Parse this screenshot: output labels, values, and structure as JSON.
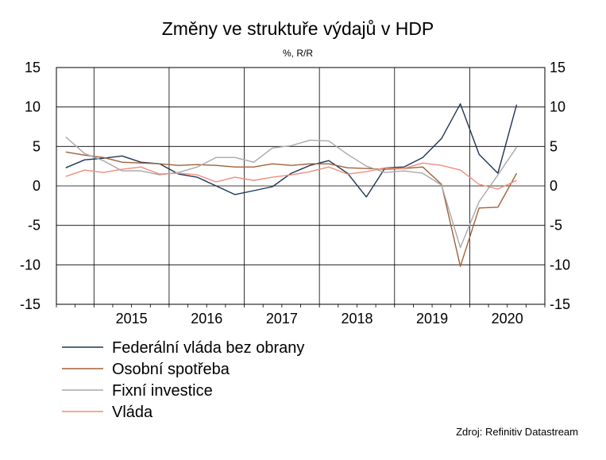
{
  "chart_data": {
    "type": "line",
    "title": "Změny ve struktuře výdajů v HDP",
    "subtitle": "%, R/R",
    "source": "Zdroj: Refinitiv Datastream",
    "ylim": [
      -15,
      15
    ],
    "y_ticks": [
      15,
      10,
      5,
      0,
      -5,
      -10,
      -15
    ],
    "y_axis_right": true,
    "x_labels": [
      "2015",
      "2016",
      "2017",
      "2018",
      "2019",
      "2020"
    ],
    "x_range": [
      2014.5,
      2021.0
    ],
    "grid": true,
    "legend_position": "bottom",
    "x": [
      2014.625,
      2014.875,
      2015.125,
      2015.375,
      2015.625,
      2015.875,
      2016.125,
      2016.375,
      2016.625,
      2016.875,
      2017.125,
      2017.375,
      2017.625,
      2017.875,
      2018.125,
      2018.375,
      2018.625,
      2018.875,
      2019.125,
      2019.375,
      2019.625,
      2019.875,
      2020.125,
      2020.375,
      2020.625,
      2020.875
    ],
    "series": [
      {
        "name": "Federální vláda bez obrany",
        "color": "#1f3556",
        "values": [
          2.3,
          3.3,
          3.5,
          3.8,
          3.0,
          2.8,
          1.5,
          1.1,
          0.0,
          -1.1,
          -0.6,
          -0.1,
          1.6,
          2.6,
          3.2,
          1.6,
          -1.4,
          2.3,
          2.4,
          3.6,
          6.0,
          10.4,
          4.0,
          1.6,
          10.3,
          null
        ]
      },
      {
        "name": "Osobní spotřeba",
        "color": "#a0613a",
        "values": [
          4.3,
          3.9,
          3.6,
          3.0,
          2.9,
          2.8,
          2.6,
          2.7,
          2.6,
          2.4,
          2.4,
          2.8,
          2.6,
          2.8,
          2.8,
          2.3,
          2.2,
          2.1,
          2.2,
          2.4,
          0.2,
          -10.2,
          -2.8,
          -2.7,
          1.6,
          null
        ]
      },
      {
        "name": "Fixní investice",
        "color": "#a8a8a8",
        "values": [
          6.2,
          4.1,
          3.2,
          1.9,
          1.9,
          1.4,
          1.7,
          2.4,
          3.6,
          3.6,
          3.0,
          4.8,
          5.1,
          5.8,
          5.7,
          4.0,
          2.5,
          1.7,
          1.9,
          1.6,
          0.1,
          -7.8,
          -2.0,
          1.4,
          4.9,
          null
        ]
      },
      {
        "name": "Vláda",
        "color": "#f08c7c",
        "values": [
          1.2,
          2.0,
          1.7,
          2.1,
          2.4,
          1.5,
          1.6,
          1.4,
          0.5,
          1.1,
          0.7,
          1.1,
          1.4,
          1.8,
          2.4,
          1.5,
          1.8,
          2.3,
          2.2,
          2.9,
          2.6,
          2.0,
          0.2,
          -0.4,
          0.7,
          null
        ]
      }
    ]
  }
}
